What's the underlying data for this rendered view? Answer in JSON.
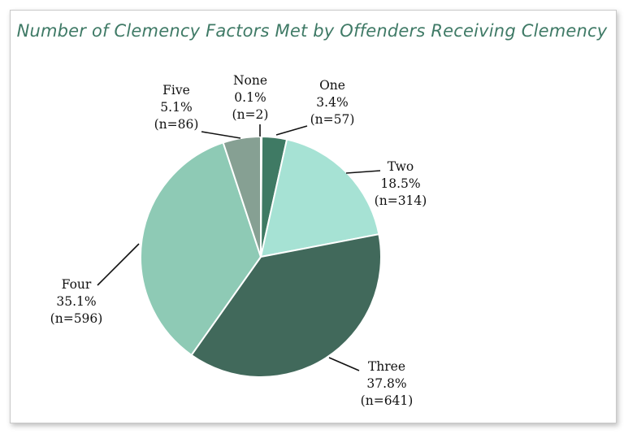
{
  "chart_data": {
    "type": "pie",
    "title": "Number of Clemency Factors Met by Offenders Receiving Clemency",
    "slices": [
      {
        "label": "None",
        "percent": 0.1,
        "n_text": "(n=2)",
        "pct_text": "0.1%",
        "value": 2,
        "color": "#8ec8b3"
      },
      {
        "label": "One",
        "percent": 3.4,
        "n_text": "(n=57)",
        "pct_text": "3.4%",
        "value": 57,
        "color": "#3f7a64"
      },
      {
        "label": "Two",
        "percent": 18.5,
        "n_text": "(n=314)",
        "pct_text": "18.5%",
        "value": 314,
        "color": "#a6e2d4"
      },
      {
        "label": "Three",
        "percent": 37.8,
        "n_text": "(n=641)",
        "pct_text": "37.8%",
        "value": 641,
        "color": "#41695b"
      },
      {
        "label": "Four",
        "percent": 35.1,
        "n_text": "(n=596)",
        "pct_text": "35.1%",
        "value": 596,
        "color": "#8ecab5"
      },
      {
        "label": "Five",
        "percent": 5.1,
        "n_text": "(n=86)",
        "pct_text": "5.1%",
        "value": 86,
        "color": "#86a093"
      }
    ],
    "legend": "none",
    "data_labels": "outside-with-leader-lines"
  }
}
